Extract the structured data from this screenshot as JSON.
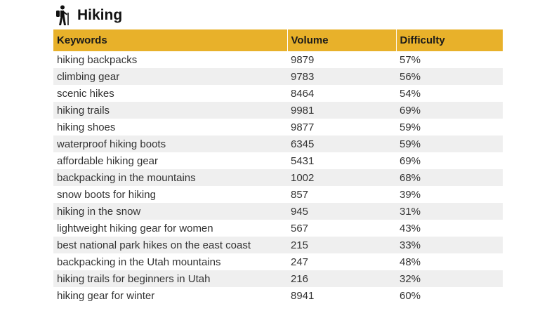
{
  "title": "Hiking",
  "icon": "hiker-icon",
  "header_color": "#e8b12a",
  "columns": [
    "Keywords",
    "Volume",
    "Difficulty"
  ],
  "rows": [
    [
      "hiking backpacks",
      "9879",
      "57%"
    ],
    [
      "climbing gear",
      "9783",
      "56%"
    ],
    [
      "scenic hikes",
      "8464",
      "54%"
    ],
    [
      "hiking trails",
      "9981",
      "69%"
    ],
    [
      "hiking shoes",
      "9877",
      "59%"
    ],
    [
      "waterproof hiking boots",
      "6345",
      "59%"
    ],
    [
      "affordable hiking gear",
      "5431",
      "69%"
    ],
    [
      "backpacking in the mountains",
      "1002",
      "68%"
    ],
    [
      "snow boots for hiking",
      "857",
      "39%"
    ],
    [
      "hiking in the snow",
      "945",
      "31%"
    ],
    [
      "lightweight hiking gear for women",
      "567",
      "43%"
    ],
    [
      "best national park hikes on the east coast",
      "215",
      "33%"
    ],
    [
      "backpacking in the Utah mountains",
      "247",
      "48%"
    ],
    [
      "hiking trails for beginners in Utah",
      "216",
      "32%"
    ],
    [
      "hiking gear for winter",
      "8941",
      "60%"
    ]
  ]
}
